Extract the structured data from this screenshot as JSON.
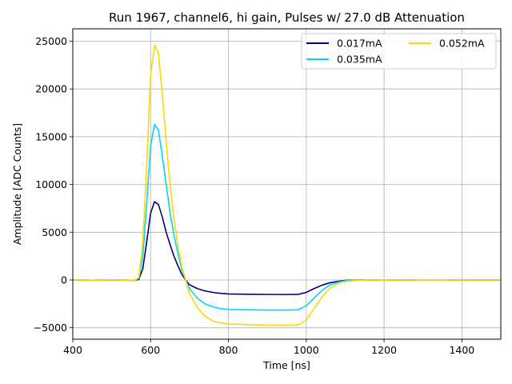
{
  "chart_data": {
    "type": "line",
    "title": "Run 1967, channel6, hi gain, Pulses w/ 27.0 dB Attenuation",
    "xlabel": "Time [ns]",
    "ylabel": "Amplitude [ADC Counts]",
    "xlim": [
      400,
      1500
    ],
    "ylim": [
      -6200,
      26300
    ],
    "xticks": [
      400,
      600,
      800,
      1000,
      1200,
      1400
    ],
    "yticks": [
      -5000,
      0,
      5000,
      10000,
      15000,
      20000,
      25000
    ],
    "grid": true,
    "legend_position": "top-right",
    "legend_columns": 2,
    "series": [
      {
        "name": "0.017mA",
        "color": "#00007f",
        "points": [
          [
            400,
            0
          ],
          [
            450,
            -30
          ],
          [
            500,
            10
          ],
          [
            540,
            -20
          ],
          [
            560,
            -50
          ],
          [
            570,
            80
          ],
          [
            580,
            1200
          ],
          [
            590,
            4000
          ],
          [
            600,
            7000
          ],
          [
            610,
            8200
          ],
          [
            620,
            7900
          ],
          [
            630,
            6600
          ],
          [
            640,
            5000
          ],
          [
            650,
            3700
          ],
          [
            660,
            2500
          ],
          [
            670,
            1500
          ],
          [
            680,
            600
          ],
          [
            690,
            0
          ],
          [
            700,
            -500
          ],
          [
            720,
            -900
          ],
          [
            740,
            -1150
          ],
          [
            760,
            -1300
          ],
          [
            780,
            -1400
          ],
          [
            800,
            -1460
          ],
          [
            850,
            -1490
          ],
          [
            900,
            -1510
          ],
          [
            950,
            -1520
          ],
          [
            980,
            -1500
          ],
          [
            1000,
            -1300
          ],
          [
            1020,
            -900
          ],
          [
            1040,
            -550
          ],
          [
            1060,
            -300
          ],
          [
            1080,
            -150
          ],
          [
            1100,
            -50
          ],
          [
            1150,
            0
          ],
          [
            1200,
            -20
          ],
          [
            1300,
            10
          ],
          [
            1400,
            0
          ],
          [
            1500,
            0
          ]
        ]
      },
      {
        "name": "0.035mA",
        "color": "#00d4ff",
        "points": [
          [
            400,
            0
          ],
          [
            450,
            -30
          ],
          [
            500,
            10
          ],
          [
            540,
            -20
          ],
          [
            560,
            -50
          ],
          [
            570,
            200
          ],
          [
            580,
            2500
          ],
          [
            590,
            8000
          ],
          [
            600,
            14000
          ],
          [
            610,
            16300
          ],
          [
            620,
            15700
          ],
          [
            630,
            13000
          ],
          [
            640,
            10000
          ],
          [
            650,
            7000
          ],
          [
            660,
            4700
          ],
          [
            670,
            2800
          ],
          [
            680,
            1100
          ],
          [
            690,
            0
          ],
          [
            700,
            -900
          ],
          [
            720,
            -1900
          ],
          [
            740,
            -2500
          ],
          [
            760,
            -2800
          ],
          [
            780,
            -3000
          ],
          [
            800,
            -3080
          ],
          [
            850,
            -3120
          ],
          [
            900,
            -3150
          ],
          [
            950,
            -3150
          ],
          [
            980,
            -3120
          ],
          [
            1000,
            -2700
          ],
          [
            1020,
            -1900
          ],
          [
            1040,
            -1100
          ],
          [
            1060,
            -550
          ],
          [
            1080,
            -250
          ],
          [
            1100,
            -80
          ],
          [
            1150,
            0
          ],
          [
            1200,
            -20
          ],
          [
            1300,
            10
          ],
          [
            1400,
            0
          ],
          [
            1500,
            0
          ]
        ]
      },
      {
        "name": "0.052mA",
        "color": "#ffd700",
        "points": [
          [
            400,
            0
          ],
          [
            450,
            -30
          ],
          [
            500,
            10
          ],
          [
            540,
            -20
          ],
          [
            560,
            -50
          ],
          [
            570,
            300
          ],
          [
            580,
            4000
          ],
          [
            590,
            12000
          ],
          [
            600,
            21500
          ],
          [
            610,
            24600
          ],
          [
            620,
            23800
          ],
          [
            630,
            19500
          ],
          [
            640,
            14500
          ],
          [
            650,
            10000
          ],
          [
            660,
            6500
          ],
          [
            670,
            3600
          ],
          [
            680,
            1400
          ],
          [
            690,
            0
          ],
          [
            700,
            -1400
          ],
          [
            720,
            -2900
          ],
          [
            740,
            -3800
          ],
          [
            760,
            -4300
          ],
          [
            780,
            -4500
          ],
          [
            800,
            -4600
          ],
          [
            850,
            -4680
          ],
          [
            900,
            -4730
          ],
          [
            950,
            -4740
          ],
          [
            980,
            -4700
          ],
          [
            1000,
            -4200
          ],
          [
            1020,
            -3000
          ],
          [
            1040,
            -1800
          ],
          [
            1060,
            -900
          ],
          [
            1080,
            -400
          ],
          [
            1100,
            -150
          ],
          [
            1150,
            0
          ],
          [
            1200,
            -20
          ],
          [
            1300,
            10
          ],
          [
            1400,
            0
          ],
          [
            1500,
            0
          ]
        ]
      }
    ]
  }
}
